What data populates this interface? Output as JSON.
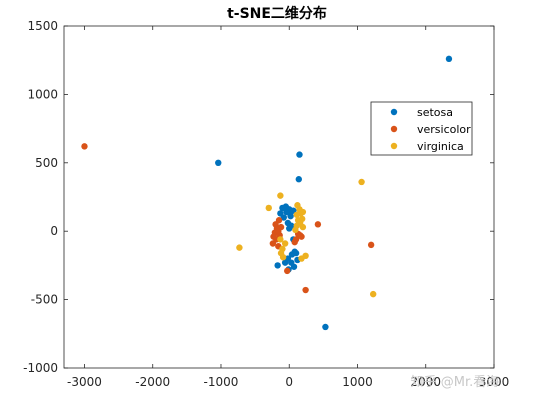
{
  "chart_data": {
    "type": "scatter",
    "title": "t-SNE二维分布",
    "xlabel": "",
    "ylabel": "",
    "xlim": [
      -3300,
      3000
    ],
    "ylim": [
      -1000,
      1500
    ],
    "xticks": [
      -3000,
      -2000,
      -1000,
      0,
      1000,
      2000,
      3000
    ],
    "yticks": [
      -1000,
      -500,
      0,
      500,
      1000,
      1500
    ],
    "xtick_labels": [
      "-3000",
      "-2000",
      "-1000",
      "0",
      "1000",
      "2000",
      "3000"
    ],
    "ytick_labels": [
      "-1000",
      "-500",
      "0",
      "500",
      "1000",
      "1500"
    ],
    "grid": false,
    "legend_position": "top-right",
    "series": [
      {
        "name": "setosa",
        "color": "#0072BD",
        "points": [
          [
            2340,
            1260
          ],
          [
            -1040,
            500
          ],
          [
            150,
            560
          ],
          [
            140,
            380
          ],
          [
            530,
            -700
          ],
          [
            -100,
            170
          ],
          [
            -50,
            180
          ],
          [
            0,
            160
          ],
          [
            60,
            150
          ],
          [
            -130,
            130
          ],
          [
            -80,
            100
          ],
          [
            20,
            110
          ],
          [
            -20,
            60
          ],
          [
            30,
            40
          ],
          [
            0,
            20
          ],
          [
            60,
            -60
          ],
          [
            80,
            -150
          ],
          [
            40,
            -170
          ],
          [
            100,
            -160
          ],
          [
            -20,
            -200
          ],
          [
            30,
            -230
          ],
          [
            70,
            -260
          ],
          [
            -60,
            -230
          ],
          [
            -10,
            -280
          ],
          [
            -170,
            -250
          ],
          [
            120,
            -210
          ],
          [
            -40,
            140
          ],
          [
            10,
            130
          ]
        ]
      },
      {
        "name": "versicolor",
        "color": "#D95319",
        "points": [
          [
            -3000,
            620
          ],
          [
            1200,
            -100
          ],
          [
            420,
            50
          ],
          [
            240,
            -430
          ],
          [
            -30,
            -290
          ],
          [
            -150,
            80
          ],
          [
            -180,
            20
          ],
          [
            -210,
            -10
          ],
          [
            -240,
            -90
          ],
          [
            -190,
            -60
          ],
          [
            -160,
            -110
          ],
          [
            -120,
            30
          ],
          [
            -200,
            50
          ],
          [
            -140,
            -30
          ],
          [
            130,
            -20
          ],
          [
            160,
            -30
          ],
          [
            100,
            -60
          ],
          [
            80,
            -80
          ],
          [
            180,
            -40
          ],
          [
            -160,
            0
          ],
          [
            -230,
            -40
          ]
        ]
      },
      {
        "name": "virginica",
        "color": "#EDB120",
        "points": [
          [
            1060,
            360
          ],
          [
            1230,
            -460
          ],
          [
            -730,
            -120
          ],
          [
            -300,
            170
          ],
          [
            -130,
            260
          ],
          [
            120,
            190
          ],
          [
            150,
            160
          ],
          [
            170,
            130
          ],
          [
            130,
            80
          ],
          [
            190,
            90
          ],
          [
            110,
            40
          ],
          [
            200,
            30
          ],
          [
            -120,
            -160
          ],
          [
            -100,
            -130
          ],
          [
            -60,
            -90
          ],
          [
            -90,
            -190
          ],
          [
            180,
            -200
          ],
          [
            240,
            -180
          ],
          [
            -130,
            -60
          ],
          [
            90,
            10
          ],
          [
            160,
            60
          ],
          [
            200,
            140
          ],
          [
            110,
            120
          ]
        ]
      }
    ],
    "watermark": "知乎 @Mr.看海"
  }
}
